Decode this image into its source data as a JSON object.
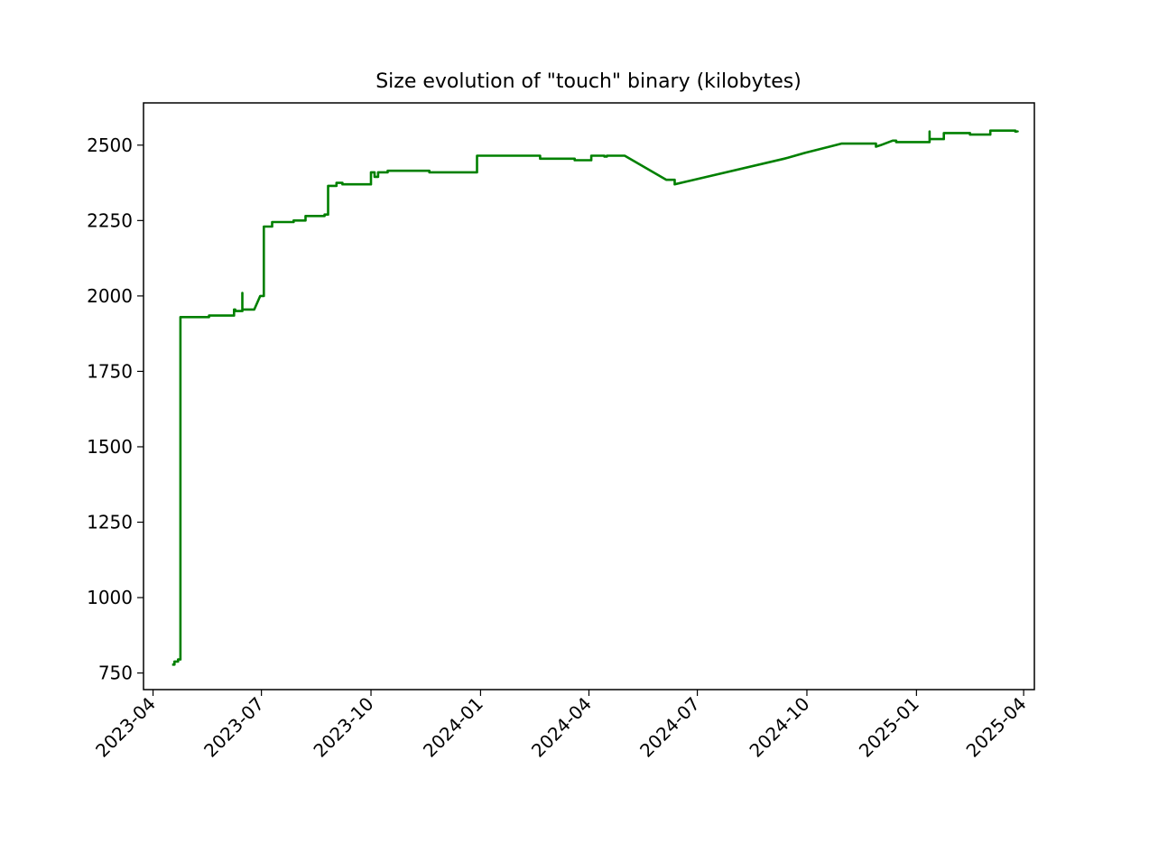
{
  "chart_data": {
    "type": "line",
    "title": "Size evolution of \"touch\" binary (kilobytes)",
    "xlabel": "",
    "ylabel": "",
    "xlim": [
      "2023-03-24",
      "2025-04-10"
    ],
    "ylim": [
      695,
      2640
    ],
    "grid": false,
    "x_ticks": [
      "2023-04",
      "2023-07",
      "2023-10",
      "2024-01",
      "2024-04",
      "2024-07",
      "2024-10",
      "2025-01",
      "2025-04"
    ],
    "y_ticks": [
      750,
      1000,
      1250,
      1500,
      1750,
      2000,
      2250,
      2500
    ],
    "series": [
      {
        "color": "#008000",
        "x": [
          "2023-04-17",
          "2023-04-19",
          "2023-04-19",
          "2023-04-22",
          "2023-04-22",
          "2023-04-24",
          "2023-04-24",
          "2023-05-18",
          "2023-05-18",
          "2023-06-08",
          "2023-06-08",
          "2023-06-08",
          "2023-06-09",
          "2023-06-09",
          "2023-06-15",
          "2023-06-15",
          "2023-06-15",
          "2023-06-15",
          "2023-06-15",
          "2023-06-25",
          "2023-06-30",
          "2023-06-30",
          "2023-07-03",
          "2023-07-03",
          "2023-07-10",
          "2023-07-10",
          "2023-07-28",
          "2023-07-28",
          "2023-08-07",
          "2023-08-07",
          "2023-08-23",
          "2023-08-23",
          "2023-08-26",
          "2023-08-26",
          "2023-09-02",
          "2023-09-02",
          "2023-09-07",
          "2023-09-07",
          "2023-10-01",
          "2023-10-01",
          "2023-10-04",
          "2023-10-04",
          "2023-10-07",
          "2023-10-07",
          "2023-10-15",
          "2023-10-15",
          "2023-11-19",
          "2023-11-19",
          "2023-12-29",
          "2023-12-29",
          "2024-02-20",
          "2024-02-20",
          "2024-03-20",
          "2024-03-20",
          "2024-04-03",
          "2024-04-03",
          "2024-04-14",
          "2024-04-14",
          "2024-04-16",
          "2024-04-16",
          "2024-05-01",
          "2024-06-05",
          "2024-06-12",
          "2024-06-12",
          "2024-09-12",
          "2024-09-12",
          "2024-09-15",
          "2024-09-15",
          "2024-09-30",
          "2024-09-30",
          "2024-10-20",
          "2024-10-20",
          "2024-10-30",
          "2024-10-30",
          "2024-11-28",
          "2024-11-28",
          "2024-12-02",
          "2024-12-12",
          "2024-12-15",
          "2024-12-15",
          "2025-01-12",
          "2025-01-12",
          "2025-01-12",
          "2025-01-12",
          "2025-01-24",
          "2025-01-24",
          "2025-02-15",
          "2025-02-15",
          "2025-03-04",
          "2025-03-04",
          "2025-03-25",
          "2025-03-25",
          "2025-03-27",
          "2025-03-27"
        ],
        "y": [
          778,
          778,
          788,
          788,
          795,
          795,
          1930,
          1930,
          1935,
          1935,
          1955,
          1955,
          1955,
          1950,
          1950,
          2010,
          2010,
          1955,
          1955,
          1955,
          2000,
          2000,
          2000,
          2230,
          2230,
          2245,
          2245,
          2250,
          2250,
          2265,
          2265,
          2270,
          2270,
          2365,
          2365,
          2375,
          2375,
          2370,
          2370,
          2410,
          2410,
          2395,
          2395,
          2410,
          2410,
          2415,
          2415,
          2410,
          2410,
          2465,
          2465,
          2455,
          2455,
          2450,
          2450,
          2465,
          2465,
          2462,
          2462,
          2465,
          2465,
          2385,
          2385,
          2370,
          2455,
          2455,
          2458,
          2458,
          2475,
          2475,
          2495,
          2495,
          2505,
          2505,
          2505,
          2495,
          2500,
          2515,
          2515,
          2510,
          2510,
          2545,
          2545,
          2520,
          2520,
          2540,
          2540,
          2535,
          2535,
          2548,
          2548,
          2545,
          2545,
          2543
        ]
      }
    ]
  }
}
